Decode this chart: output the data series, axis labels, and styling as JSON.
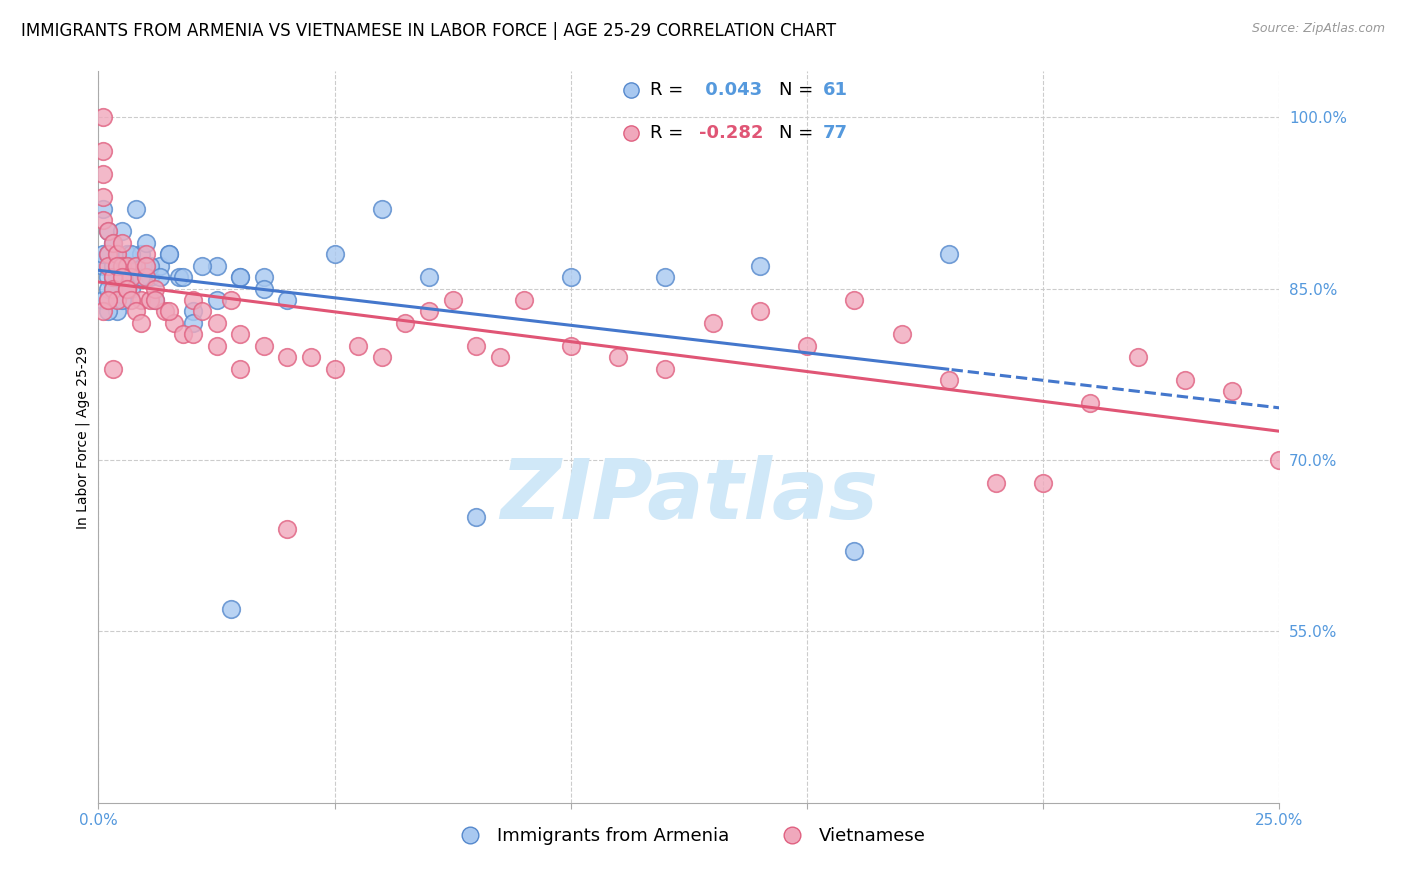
{
  "title": "IMMIGRANTS FROM ARMENIA VS VIETNAMESE IN LABOR FORCE | AGE 25-29 CORRELATION CHART",
  "source": "Source: ZipAtlas.com",
  "ylabel": "In Labor Force | Age 25-29",
  "xlim": [
    0.0,
    0.25
  ],
  "ylim": [
    0.4,
    1.04
  ],
  "xticks": [
    0.0,
    0.05,
    0.1,
    0.15,
    0.2,
    0.25
  ],
  "xtick_labels": [
    "0.0%",
    "",
    "",
    "",
    "",
    "25.0%"
  ],
  "ytick_labels_right": [
    "55.0%",
    "70.0%",
    "85.0%",
    "100.0%"
  ],
  "ytick_values_right": [
    0.55,
    0.7,
    0.85,
    1.0
  ],
  "legend_labels": [
    "Immigrants from Armenia",
    "Vietnamese"
  ],
  "legend_R_blue": " 0.043",
  "legend_R_pink": "-0.282",
  "legend_N_blue": "61",
  "legend_N_pink": "77",
  "blue_fill": "#a8c8f0",
  "pink_fill": "#f0a8bc",
  "blue_edge": "#5588cc",
  "pink_edge": "#e06080",
  "blue_line": "#4477cc",
  "pink_line": "#e05575",
  "annotation_color": "#5599dd",
  "grid_color": "#cccccc",
  "title_fontsize": 12,
  "axis_label_fontsize": 10,
  "tick_fontsize": 11,
  "legend_fontsize": 13,
  "watermark_text": "ZIPatlas",
  "watermark_color": "#d0e8f8",
  "watermark_fontsize": 60,
  "armenia_x": [
    0.001,
    0.001,
    0.001,
    0.001,
    0.002,
    0.002,
    0.002,
    0.002,
    0.003,
    0.003,
    0.003,
    0.004,
    0.004,
    0.004,
    0.005,
    0.005,
    0.005,
    0.006,
    0.006,
    0.007,
    0.007,
    0.008,
    0.009,
    0.01,
    0.01,
    0.011,
    0.012,
    0.013,
    0.015,
    0.017,
    0.02,
    0.025,
    0.03,
    0.035,
    0.04,
    0.05,
    0.06,
    0.07,
    0.08,
    0.1,
    0.12,
    0.14,
    0.16,
    0.18,
    0.02,
    0.025,
    0.03,
    0.008,
    0.006,
    0.003,
    0.002,
    0.004,
    0.007,
    0.009,
    0.011,
    0.013,
    0.015,
    0.018,
    0.022,
    0.028,
    0.035
  ],
  "armenia_y": [
    0.87,
    0.92,
    0.84,
    0.88,
    0.9,
    0.86,
    0.85,
    0.88,
    0.89,
    0.85,
    0.87,
    0.83,
    0.86,
    0.88,
    0.9,
    0.84,
    0.87,
    0.86,
    0.88,
    0.87,
    0.85,
    0.92,
    0.88,
    0.87,
    0.89,
    0.86,
    0.84,
    0.87,
    0.88,
    0.86,
    0.83,
    0.87,
    0.86,
    0.86,
    0.84,
    0.88,
    0.92,
    0.86,
    0.65,
    0.86,
    0.86,
    0.87,
    0.62,
    0.88,
    0.82,
    0.84,
    0.86,
    0.87,
    0.85,
    0.86,
    0.83,
    0.87,
    0.88,
    0.86,
    0.87,
    0.86,
    0.88,
    0.86,
    0.87,
    0.57,
    0.85
  ],
  "vietnam_x": [
    0.001,
    0.001,
    0.001,
    0.001,
    0.001,
    0.002,
    0.002,
    0.002,
    0.002,
    0.003,
    0.003,
    0.003,
    0.004,
    0.004,
    0.005,
    0.005,
    0.006,
    0.006,
    0.007,
    0.008,
    0.009,
    0.01,
    0.01,
    0.011,
    0.012,
    0.014,
    0.016,
    0.018,
    0.02,
    0.022,
    0.025,
    0.028,
    0.03,
    0.035,
    0.04,
    0.045,
    0.05,
    0.055,
    0.06,
    0.065,
    0.07,
    0.075,
    0.08,
    0.085,
    0.09,
    0.1,
    0.11,
    0.12,
    0.13,
    0.14,
    0.15,
    0.16,
    0.17,
    0.18,
    0.19,
    0.2,
    0.21,
    0.22,
    0.23,
    0.24,
    0.25,
    0.001,
    0.002,
    0.003,
    0.004,
    0.005,
    0.006,
    0.007,
    0.008,
    0.009,
    0.01,
    0.012,
    0.015,
    0.02,
    0.025,
    0.03,
    0.04
  ],
  "vietnam_y": [
    1.0,
    0.97,
    0.95,
    0.93,
    0.91,
    0.9,
    0.88,
    0.87,
    0.84,
    0.89,
    0.86,
    0.85,
    0.88,
    0.84,
    0.87,
    0.89,
    0.87,
    0.85,
    0.86,
    0.87,
    0.84,
    0.88,
    0.86,
    0.84,
    0.85,
    0.83,
    0.82,
    0.81,
    0.84,
    0.83,
    0.82,
    0.84,
    0.81,
    0.8,
    0.79,
    0.79,
    0.78,
    0.8,
    0.79,
    0.82,
    0.83,
    0.84,
    0.8,
    0.79,
    0.84,
    0.8,
    0.79,
    0.78,
    0.82,
    0.83,
    0.8,
    0.84,
    0.81,
    0.77,
    0.68,
    0.68,
    0.75,
    0.79,
    0.77,
    0.76,
    0.7,
    0.83,
    0.84,
    0.78,
    0.87,
    0.86,
    0.85,
    0.84,
    0.83,
    0.82,
    0.87,
    0.84,
    0.83,
    0.81,
    0.8,
    0.78,
    0.64
  ]
}
